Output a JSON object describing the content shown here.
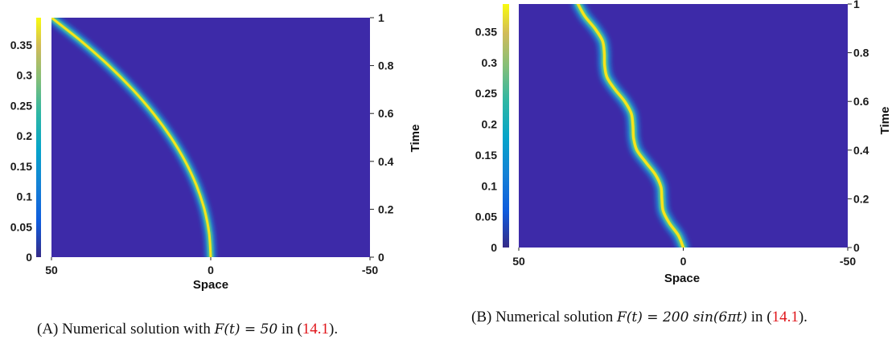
{
  "panels": [
    {
      "id": "a",
      "colorbar_ticks": [
        "0.35",
        "0.3",
        "0.25",
        "0.2",
        "0.15",
        "0.1",
        "0.05",
        "0"
      ],
      "colorbar_range": [
        0,
        0.395
      ],
      "time_ticks": [
        "1",
        "0.8",
        "0.6",
        "0.4",
        "0.2",
        "0"
      ],
      "space_ticks": [
        "50",
        "0",
        "-50"
      ],
      "xlabel": "Space",
      "ylabel": "Time",
      "caption": {
        "label": "(A)",
        "text_before": " Numerical solution with ",
        "math": "F(t) = 50",
        "text_after": " in (",
        "ref": "14.1",
        "text_end": ")."
      }
    },
    {
      "id": "b",
      "colorbar_ticks": [
        "0.35",
        "0.3",
        "0.25",
        "0.2",
        "0.15",
        "0.1",
        "0.05",
        "0"
      ],
      "colorbar_range": [
        0,
        0.395
      ],
      "time_ticks": [
        "1",
        "0.8",
        "0.6",
        "0.4",
        "0.2",
        "0"
      ],
      "space_ticks": [
        "50",
        "0",
        "-50"
      ],
      "xlabel": "Space",
      "ylabel": "Time",
      "caption": {
        "label": "(B)",
        "text_before": " Numerical solution ",
        "math": "F(t)  =  200 sin(6πt)",
        "text_after": " in (",
        "ref": "14.1",
        "text_end": ")."
      }
    }
  ],
  "chart_data": [
    {
      "type": "heatmap",
      "xlabel": "Space",
      "ylabel": "Time",
      "xlim": [
        50,
        -50
      ],
      "ylim": [
        0,
        1
      ],
      "colorbar": {
        "min": 0,
        "max": 0.395,
        "colormap": "parula"
      },
      "ridge": {
        "time": [
          0,
          0.1,
          0.2,
          0.3,
          0.4,
          0.5,
          0.6,
          0.7,
          0.8,
          0.9,
          1.0
        ],
        "space": [
          0,
          0.5,
          2,
          4.5,
          8,
          12.5,
          18,
          24.5,
          32,
          40.5,
          50
        ]
      }
    },
    {
      "type": "heatmap",
      "xlabel": "Space",
      "ylabel": "Time",
      "xlim": [
        50,
        -50
      ],
      "ylim": [
        0,
        1
      ],
      "colorbar": {
        "min": 0,
        "max": 0.395,
        "colormap": "parula"
      },
      "ridge": {
        "time": [
          0,
          0.05,
          0.1,
          0.15,
          0.2,
          0.25,
          0.3,
          0.35,
          0.4,
          0.45,
          0.5,
          0.55,
          0.6,
          0.65,
          0.7,
          0.75,
          0.8,
          0.85,
          0.9,
          0.95,
          1.0
        ],
        "space": [
          0,
          1.5,
          4.2,
          6.1,
          6.5,
          6.8,
          8.5,
          11.4,
          14.1,
          15.1,
          15.3,
          15.8,
          17.8,
          20.8,
          23.2,
          23.9,
          24.0,
          24.6,
          26.9,
          29.9,
          32.0
        ]
      }
    }
  ]
}
